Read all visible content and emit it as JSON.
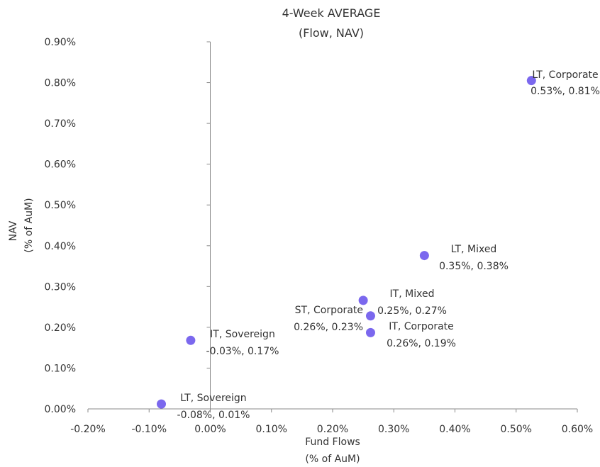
{
  "chart_data": {
    "type": "scatter",
    "title": "4-Week AVERAGE",
    "subtitle": "(Flow, NAV)",
    "xlabel": [
      "Fund Flows",
      "(% of AuM)"
    ],
    "ylabel": [
      "NAV",
      "(% of AuM)"
    ],
    "xlim": [
      -0.2,
      0.6
    ],
    "ylim": [
      0.0,
      0.9
    ],
    "xticks": [
      -0.2,
      -0.1,
      0.0,
      0.1,
      0.2,
      0.3,
      0.4,
      0.5,
      0.6
    ],
    "xtick_labels": [
      "-0.20%",
      "-0.10%",
      "0.00%",
      "0.10%",
      "0.20%",
      "0.30%",
      "0.40%",
      "0.50%",
      "0.60%"
    ],
    "yticks": [
      0.0,
      0.1,
      0.2,
      0.3,
      0.4,
      0.5,
      0.6,
      0.7,
      0.8,
      0.9
    ],
    "ytick_labels": [
      "0.00%",
      "0.10%",
      "0.20%",
      "0.30%",
      "0.40%",
      "0.50%",
      "0.60%",
      "0.70%",
      "0.80%",
      "0.90%"
    ],
    "grid": false,
    "legend": "none",
    "marker_color": "#7B68EE",
    "points": [
      {
        "name": "LT, Corporate",
        "x": 0.525,
        "y": 0.805,
        "value_label": "0.53%, 0.81%",
        "label_pos": "right"
      },
      {
        "name": "LT, Mixed",
        "x": 0.35,
        "y": 0.376,
        "value_label": "0.35%, 0.38%",
        "label_pos": "right"
      },
      {
        "name": "IT, Mixed",
        "x": 0.25,
        "y": 0.266,
        "value_label": "0.25%, 0.27%",
        "label_pos": "right"
      },
      {
        "name": "ST, Corporate",
        "x": 0.262,
        "y": 0.228,
        "value_label": "0.26%, 0.23%",
        "label_pos": "left"
      },
      {
        "name": "IT, Corporate",
        "x": 0.262,
        "y": 0.187,
        "value_label": "0.26%, 0.19%",
        "label_pos": "right"
      },
      {
        "name": "IT, Sovereign",
        "x": -0.032,
        "y": 0.168,
        "value_label": "-0.03%, 0.17%",
        "label_pos": "right"
      },
      {
        "name": "LT, Sovereign",
        "x": -0.08,
        "y": 0.012,
        "value_label": "-0.08%, 0.01%",
        "label_pos": "right"
      }
    ]
  }
}
